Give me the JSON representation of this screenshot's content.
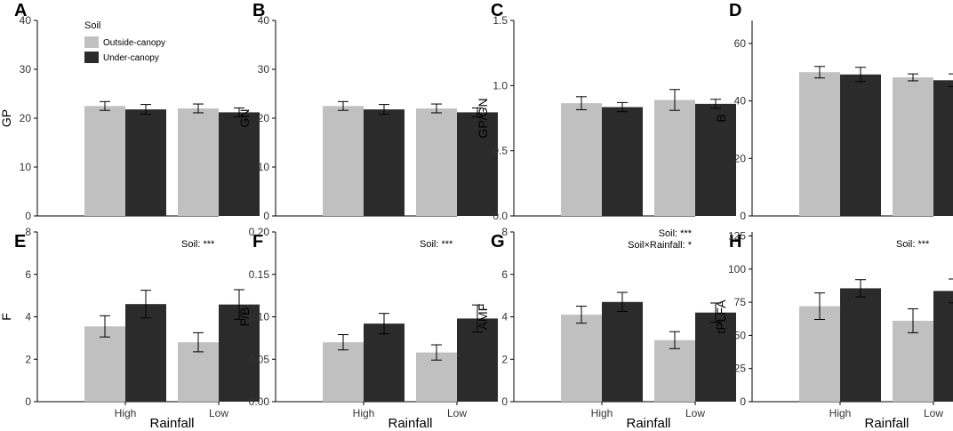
{
  "colors": {
    "outside": "#c0c0c0",
    "under": "#2b2b2b"
  },
  "legend": {
    "title": "Soil",
    "entries": [
      "Outside-canopy",
      "Under-canopy"
    ],
    "placement": "top-left inside panel A"
  },
  "chart_data": [
    {
      "letter": "A",
      "type": "bar",
      "ylabel": "GP",
      "xlabel": "",
      "show_x_ticks": false,
      "categories": [
        "High",
        "Low"
      ],
      "ylim": [
        0,
        40
      ],
      "yticks": [
        0,
        10,
        20,
        30,
        40
      ],
      "ytick_labels": [
        "0",
        "10",
        "20",
        "30",
        "40"
      ],
      "series": [
        {
          "name": "Outside-canopy",
          "values": [
            22.5,
            22.0
          ],
          "errors": [
            0.9,
            0.9
          ]
        },
        {
          "name": "Under-canopy",
          "values": [
            21.8,
            21.2
          ],
          "errors": [
            1.0,
            0.9
          ]
        }
      ],
      "annotations": []
    },
    {
      "letter": "B",
      "type": "bar",
      "ylabel": "GN",
      "xlabel": "",
      "show_x_ticks": false,
      "categories": [
        "High",
        "Low"
      ],
      "ylim": [
        0,
        40
      ],
      "yticks": [
        0,
        10,
        20,
        30,
        40
      ],
      "ytick_labels": [
        "0",
        "10",
        "20",
        "30",
        "40"
      ],
      "series": [
        {
          "name": "Outside-canopy",
          "values": [
            22.5,
            22.0
          ],
          "errors": [
            0.9,
            0.9
          ]
        },
        {
          "name": "Under-canopy",
          "values": [
            21.8,
            21.2
          ],
          "errors": [
            1.0,
            0.9
          ]
        }
      ],
      "annotations": []
    },
    {
      "letter": "C",
      "type": "bar",
      "ylabel": "GP/GN",
      "xlabel": "",
      "show_x_ticks": false,
      "categories": [
        "High",
        "Low"
      ],
      "ylim": [
        0,
        1.5
      ],
      "yticks": [
        0,
        0.5,
        1.0,
        1.5
      ],
      "ytick_labels": [
        "0.0",
        "0.5",
        "1.0",
        "1.5"
      ],
      "series": [
        {
          "name": "Outside-canopy",
          "values": [
            0.865,
            0.89
          ],
          "errors": [
            0.05,
            0.08
          ]
        },
        {
          "name": "Under-canopy",
          "values": [
            0.835,
            0.86
          ],
          "errors": [
            0.035,
            0.035
          ]
        }
      ],
      "annotations": []
    },
    {
      "letter": "D",
      "type": "bar",
      "ylabel": "B",
      "xlabel": "",
      "show_x_ticks": false,
      "categories": [
        "High",
        "Low"
      ],
      "ylim": [
        0,
        68
      ],
      "yticks": [
        0,
        20,
        40,
        60
      ],
      "ytick_labels": [
        "0",
        "20",
        "40",
        "60"
      ],
      "series": [
        {
          "name": "Outside-canopy",
          "values": [
            50.0,
            48.2
          ],
          "errors": [
            2.0,
            1.2
          ]
        },
        {
          "name": "Under-canopy",
          "values": [
            49.2,
            47.2
          ],
          "errors": [
            2.5,
            2.2
          ]
        }
      ],
      "annotations": []
    },
    {
      "letter": "E",
      "type": "bar",
      "ylabel": "F",
      "xlabel": "Rainfall",
      "show_x_ticks": true,
      "categories": [
        "High",
        "Low"
      ],
      "ylim": [
        0,
        8
      ],
      "yticks": [
        0,
        2,
        4,
        6,
        8
      ],
      "ytick_labels": [
        "0",
        "2",
        "4",
        "6",
        "8"
      ],
      "series": [
        {
          "name": "Outside-canopy",
          "values": [
            3.55,
            2.8
          ],
          "errors": [
            0.5,
            0.45
          ]
        },
        {
          "name": "Under-canopy",
          "values": [
            4.6,
            4.58
          ],
          "errors": [
            0.65,
            0.7
          ]
        }
      ],
      "annotations": [
        "Soil: ***"
      ]
    },
    {
      "letter": "F",
      "type": "bar",
      "ylabel": "F/B",
      "xlabel": "Rainfall",
      "show_x_ticks": true,
      "categories": [
        "High",
        "Low"
      ],
      "ylim": [
        0,
        0.2
      ],
      "yticks": [
        0,
        0.05,
        0.1,
        0.15,
        0.2
      ],
      "ytick_labels": [
        "0.00",
        "0.05",
        "0.10",
        "0.15",
        "0.20"
      ],
      "series": [
        {
          "name": "Outside-canopy",
          "values": [
            0.07,
            0.058
          ],
          "errors": [
            0.009,
            0.009
          ]
        },
        {
          "name": "Under-canopy",
          "values": [
            0.092,
            0.098
          ],
          "errors": [
            0.012,
            0.016
          ]
        }
      ],
      "annotations": [
        "Soil: ***"
      ]
    },
    {
      "letter": "G",
      "type": "bar",
      "ylabel": "AMF",
      "xlabel": "Rainfall",
      "show_x_ticks": true,
      "categories": [
        "High",
        "Low"
      ],
      "ylim": [
        0,
        8
      ],
      "yticks": [
        0,
        2,
        4,
        6,
        8
      ],
      "ytick_labels": [
        "0",
        "2",
        "4",
        "6",
        "8"
      ],
      "series": [
        {
          "name": "Outside-canopy",
          "values": [
            4.1,
            2.9
          ],
          "errors": [
            0.4,
            0.4
          ]
        },
        {
          "name": "Under-canopy",
          "values": [
            4.7,
            4.2
          ],
          "errors": [
            0.45,
            0.45
          ]
        }
      ],
      "annotations": [
        "Soil: ***",
        "Soil×Rainfall: *"
      ]
    },
    {
      "letter": "H",
      "type": "bar",
      "ylabel": "tPLFA",
      "xlabel": "Rainfall",
      "show_x_ticks": true,
      "categories": [
        "High",
        "Low"
      ],
      "ylim": [
        0,
        128
      ],
      "yticks": [
        0,
        25,
        50,
        75,
        100,
        125
      ],
      "ytick_labels": [
        "0",
        "25",
        "50",
        "75",
        "100",
        "125"
      ],
      "series": [
        {
          "name": "Outside-canopy",
          "values": [
            72.0,
            61.0
          ],
          "errors": [
            10.0,
            9.0
          ]
        },
        {
          "name": "Under-canopy",
          "values": [
            85.5,
            83.5
          ],
          "errors": [
            6.5,
            9.0
          ]
        }
      ],
      "annotations": [
        "Soil: ***"
      ]
    }
  ]
}
